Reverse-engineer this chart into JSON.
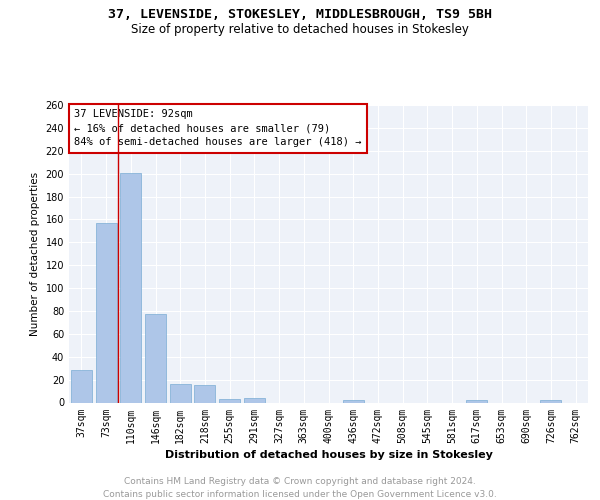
{
  "title1": "37, LEVENSIDE, STOKESLEY, MIDDLESBROUGH, TS9 5BH",
  "title2": "Size of property relative to detached houses in Stokesley",
  "xlabel": "Distribution of detached houses by size in Stokesley",
  "ylabel": "Number of detached properties",
  "categories": [
    "37sqm",
    "73sqm",
    "110sqm",
    "146sqm",
    "182sqm",
    "218sqm",
    "255sqm",
    "291sqm",
    "327sqm",
    "363sqm",
    "400sqm",
    "436sqm",
    "472sqm",
    "508sqm",
    "545sqm",
    "581sqm",
    "617sqm",
    "653sqm",
    "690sqm",
    "726sqm",
    "762sqm"
  ],
  "values": [
    28,
    157,
    201,
    77,
    16,
    15,
    3,
    4,
    0,
    0,
    0,
    2,
    0,
    0,
    0,
    0,
    2,
    0,
    0,
    2,
    0
  ],
  "bar_color": "#aec6e8",
  "bar_edge_color": "#7aadd4",
  "annotation_text": "37 LEVENSIDE: 92sqm\n← 16% of detached houses are smaller (79)\n84% of semi-detached houses are larger (418) →",
  "annotation_box_color": "#ffffff",
  "annotation_border_color": "#cc0000",
  "vline_color": "#cc0000",
  "ylim": [
    0,
    260
  ],
  "yticks": [
    0,
    20,
    40,
    60,
    80,
    100,
    120,
    140,
    160,
    180,
    200,
    220,
    240,
    260
  ],
  "bg_color": "#eef2f9",
  "footer_text": "Contains HM Land Registry data © Crown copyright and database right 2024.\nContains public sector information licensed under the Open Government Licence v3.0.",
  "title1_fontsize": 9.5,
  "title2_fontsize": 8.5,
  "xlabel_fontsize": 8,
  "ylabel_fontsize": 7.5,
  "tick_fontsize": 7,
  "annotation_fontsize": 7.5,
  "footer_fontsize": 6.5
}
